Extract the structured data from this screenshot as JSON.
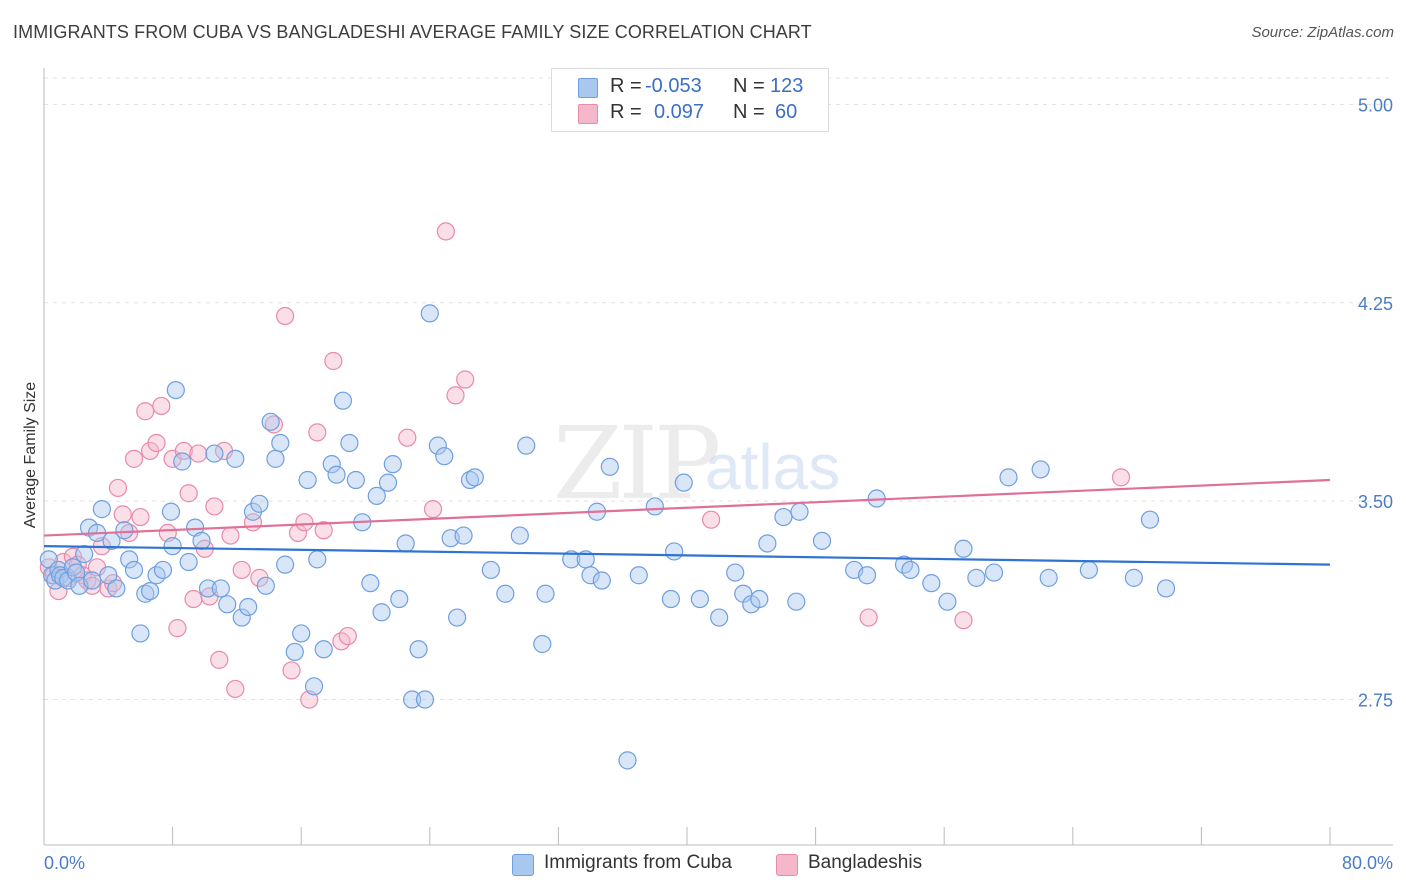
{
  "header": {
    "title": "IMMIGRANTS FROM CUBA VS BANGLADESHI AVERAGE FAMILY SIZE CORRELATION CHART",
    "source": "Source: ZipAtlas.com"
  },
  "watermark": {
    "zip": "ZIP",
    "atlas": "atlas"
  },
  "legend": {
    "rows": [
      {
        "r_label": "R =",
        "r_value": "-0.053",
        "n_label": "N =",
        "n_value": "123",
        "color": "#a9c8f0"
      },
      {
        "r_label": "R =",
        "r_value": "0.097",
        "n_label": "N =",
        "n_value": "60",
        "color": "#f5b8cb"
      }
    ]
  },
  "bottom_legend": {
    "cuba": "Immigrants from Cuba",
    "bangladeshi": "Bangladeshis"
  },
  "colors": {
    "cuba_fill": "#a9c8f0",
    "cuba_stroke": "#6f9fe0",
    "cuba_line": "#2f74d0",
    "bang_fill": "#f5b8cb",
    "bang_stroke": "#e98aa8",
    "bang_line": "#e0709a",
    "tick_text": "#4a7cc7",
    "grid": "#e2e2e2"
  },
  "chart_data": {
    "type": "scatter",
    "title": "IMMIGRANTS FROM CUBA VS BANGLADESHI AVERAGE FAMILY SIZE CORRELATION CHART",
    "xlabel": "",
    "ylabel": "Average Family Size",
    "xlim": [
      0,
      80
    ],
    "ylim": [
      2.2,
      5.1
    ],
    "x_tick_labels": [
      "0.0%",
      "80.0%"
    ],
    "y_ticks": [
      2.75,
      3.5,
      4.25,
      5.0
    ],
    "y_tick_labels": [
      "2.75",
      "3.50",
      "4.25",
      "5.00"
    ],
    "grid": "horizontal dashed",
    "legend_position": "top-center",
    "series": [
      {
        "name": "Immigrants from Cuba",
        "trend": {
          "x": [
            0,
            80
          ],
          "y": [
            3.33,
            3.26
          ]
        },
        "points": [
          [
            0.3,
            3.28
          ],
          [
            0.5,
            3.22
          ],
          [
            0.7,
            3.2
          ],
          [
            0.9,
            3.24
          ],
          [
            1.0,
            3.22
          ],
          [
            1.2,
            3.21
          ],
          [
            1.5,
            3.2
          ],
          [
            1.8,
            3.25
          ],
          [
            2.0,
            3.23
          ],
          [
            2.2,
            3.18
          ],
          [
            2.5,
            3.3
          ],
          [
            2.8,
            3.4
          ],
          [
            3.0,
            3.2
          ],
          [
            3.3,
            3.38
          ],
          [
            3.6,
            3.47
          ],
          [
            4.0,
            3.22
          ],
          [
            4.2,
            3.35
          ],
          [
            4.5,
            3.17
          ],
          [
            5.0,
            3.39
          ],
          [
            5.3,
            3.28
          ],
          [
            5.6,
            3.24
          ],
          [
            6.0,
            3.0
          ],
          [
            6.3,
            3.15
          ],
          [
            6.6,
            3.16
          ],
          [
            7.0,
            3.22
          ],
          [
            7.4,
            3.24
          ],
          [
            7.9,
            3.46
          ],
          [
            8.2,
            3.92
          ],
          [
            8.6,
            3.65
          ],
          [
            9.0,
            3.27
          ],
          [
            9.4,
            3.4
          ],
          [
            9.8,
            3.35
          ],
          [
            10.2,
            3.17
          ],
          [
            10.6,
            3.68
          ],
          [
            11.0,
            3.17
          ],
          [
            11.4,
            3.11
          ],
          [
            11.9,
            3.66
          ],
          [
            12.3,
            3.06
          ],
          [
            12.7,
            3.1
          ],
          [
            13.0,
            3.46
          ],
          [
            13.4,
            3.49
          ],
          [
            13.8,
            3.18
          ],
          [
            14.1,
            3.8
          ],
          [
            14.4,
            3.66
          ],
          [
            14.7,
            3.72
          ],
          [
            15.0,
            3.26
          ],
          [
            15.6,
            2.93
          ],
          [
            16.0,
            3.0
          ],
          [
            16.4,
            3.58
          ],
          [
            16.8,
            2.8
          ],
          [
            17.0,
            3.28
          ],
          [
            17.4,
            2.94
          ],
          [
            17.9,
            3.64
          ],
          [
            18.2,
            3.6
          ],
          [
            18.6,
            3.88
          ],
          [
            19.0,
            3.72
          ],
          [
            19.4,
            3.58
          ],
          [
            19.8,
            3.42
          ],
          [
            20.3,
            3.19
          ],
          [
            20.7,
            3.52
          ],
          [
            21.0,
            3.08
          ],
          [
            21.4,
            3.57
          ],
          [
            21.7,
            3.64
          ],
          [
            22.1,
            3.13
          ],
          [
            22.5,
            3.34
          ],
          [
            22.9,
            2.75
          ],
          [
            23.3,
            2.94
          ],
          [
            23.7,
            2.75
          ],
          [
            24.0,
            4.21
          ],
          [
            24.5,
            3.71
          ],
          [
            24.9,
            3.67
          ],
          [
            25.3,
            3.36
          ],
          [
            25.7,
            3.06
          ],
          [
            26.1,
            3.37
          ],
          [
            26.5,
            3.58
          ],
          [
            26.8,
            3.59
          ],
          [
            27.8,
            3.24
          ],
          [
            28.7,
            3.15
          ],
          [
            29.6,
            3.37
          ],
          [
            30.0,
            3.71
          ],
          [
            31.0,
            2.96
          ],
          [
            31.2,
            3.15
          ],
          [
            32.8,
            3.28
          ],
          [
            33.7,
            3.28
          ],
          [
            34.0,
            3.22
          ],
          [
            34.4,
            3.46
          ],
          [
            34.7,
            3.2
          ],
          [
            35.2,
            3.63
          ],
          [
            37.0,
            3.22
          ],
          [
            38.0,
            3.48
          ],
          [
            39.0,
            3.13
          ],
          [
            39.2,
            3.31
          ],
          [
            39.8,
            3.57
          ],
          [
            40.8,
            3.13
          ],
          [
            42.0,
            3.06
          ],
          [
            43.0,
            3.23
          ],
          [
            43.5,
            3.15
          ],
          [
            44.0,
            3.11
          ],
          [
            44.5,
            3.13
          ],
          [
            45.0,
            3.34
          ],
          [
            46.0,
            3.44
          ],
          [
            46.8,
            3.12
          ],
          [
            47.0,
            3.46
          ],
          [
            48.4,
            3.35
          ],
          [
            50.4,
            3.24
          ],
          [
            51.2,
            3.22
          ],
          [
            51.8,
            3.51
          ],
          [
            53.5,
            3.26
          ],
          [
            53.9,
            3.24
          ],
          [
            55.2,
            3.19
          ],
          [
            56.2,
            3.12
          ],
          [
            57.2,
            3.32
          ],
          [
            58.0,
            3.21
          ],
          [
            59.1,
            3.23
          ],
          [
            60.0,
            3.59
          ],
          [
            62.0,
            3.62
          ],
          [
            62.5,
            3.21
          ],
          [
            65.0,
            3.24
          ],
          [
            67.8,
            3.21
          ],
          [
            68.8,
            3.43
          ],
          [
            69.8,
            3.17
          ],
          [
            36.3,
            2.52
          ],
          [
            8.0,
            3.33
          ]
        ]
      },
      {
        "name": "Bangladeshis",
        "trend": {
          "x": [
            0,
            80
          ],
          "y": [
            3.37,
            3.58
          ]
        },
        "points": [
          [
            0.3,
            3.25
          ],
          [
            0.6,
            3.22
          ],
          [
            0.9,
            3.16
          ],
          [
            1.2,
            3.27
          ],
          [
            1.5,
            3.21
          ],
          [
            1.8,
            3.29
          ],
          [
            2.1,
            3.26
          ],
          [
            2.4,
            3.22
          ],
          [
            2.7,
            3.2
          ],
          [
            3.0,
            3.18
          ],
          [
            3.3,
            3.25
          ],
          [
            3.6,
            3.33
          ],
          [
            4.0,
            3.17
          ],
          [
            4.3,
            3.19
          ],
          [
            4.6,
            3.55
          ],
          [
            4.9,
            3.45
          ],
          [
            5.3,
            3.38
          ],
          [
            5.6,
            3.66
          ],
          [
            6.0,
            3.44
          ],
          [
            6.3,
            3.84
          ],
          [
            6.6,
            3.69
          ],
          [
            7.0,
            3.72
          ],
          [
            7.3,
            3.86
          ],
          [
            7.7,
            3.38
          ],
          [
            8.0,
            3.66
          ],
          [
            8.3,
            3.02
          ],
          [
            8.7,
            3.69
          ],
          [
            9.0,
            3.53
          ],
          [
            9.3,
            3.13
          ],
          [
            9.6,
            3.68
          ],
          [
            10.0,
            3.32
          ],
          [
            10.3,
            3.14
          ],
          [
            10.6,
            3.48
          ],
          [
            10.9,
            2.9
          ],
          [
            11.2,
            3.69
          ],
          [
            11.6,
            3.37
          ],
          [
            11.9,
            2.79
          ],
          [
            12.3,
            3.24
          ],
          [
            13.0,
            3.42
          ],
          [
            13.4,
            3.21
          ],
          [
            14.3,
            3.79
          ],
          [
            15.0,
            4.2
          ],
          [
            15.4,
            2.86
          ],
          [
            15.8,
            3.38
          ],
          [
            16.2,
            3.42
          ],
          [
            16.5,
            2.75
          ],
          [
            17.0,
            3.76
          ],
          [
            17.4,
            3.39
          ],
          [
            18.0,
            4.03
          ],
          [
            18.5,
            2.97
          ],
          [
            18.9,
            2.99
          ],
          [
            22.6,
            3.74
          ],
          [
            24.2,
            3.47
          ],
          [
            25.0,
            4.52
          ],
          [
            25.6,
            3.9
          ],
          [
            26.2,
            3.96
          ],
          [
            41.5,
            3.43
          ],
          [
            51.3,
            3.06
          ],
          [
            57.2,
            3.05
          ],
          [
            67.0,
            3.59
          ]
        ]
      }
    ]
  }
}
